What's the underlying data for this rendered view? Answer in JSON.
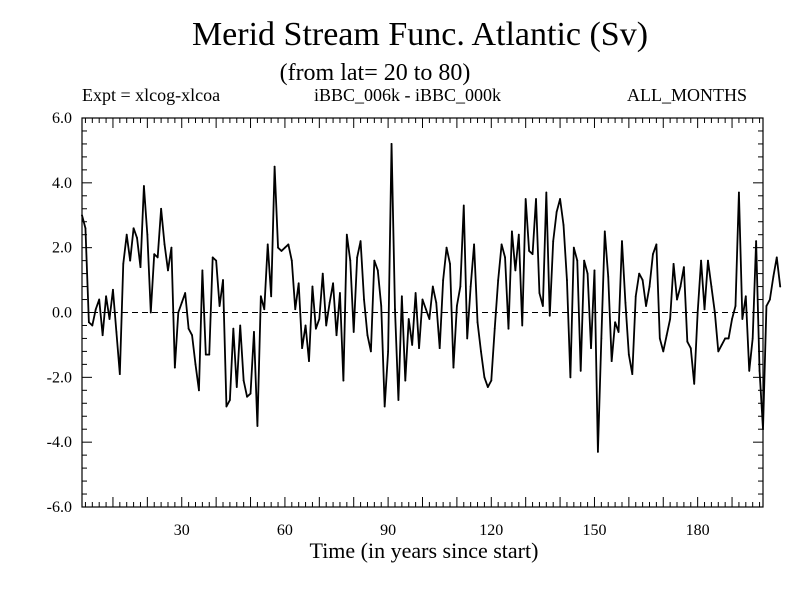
{
  "chart_data": {
    "type": "line",
    "title": "Merid Stream Func. Atlantic (Sv)",
    "subtitle": "(from lat= 20 to 80)",
    "left_label": "Expt = xlcog-xlcoa",
    "center_label": "iBBC_006k - iBBC_000k",
    "right_label": "ALL_MONTHS",
    "xlabel": "Time (in years since start)",
    "ylabel": "",
    "xlim": [
      1,
      199
    ],
    "ylim": [
      -6,
      6
    ],
    "x_ticks": [
      30,
      60,
      90,
      120,
      150,
      180
    ],
    "y_ticks": [
      -6,
      -4,
      -2,
      0,
      2,
      4,
      6
    ],
    "y_tick_labels": [
      "-6.0",
      "-4.0",
      "-2.0",
      "0.0",
      "2.0",
      "4.0",
      "6.0"
    ],
    "zero_line": "dashed",
    "series": [
      {
        "name": "iBBC_006k - iBBC_000k",
        "x_start": 1,
        "x_step": 1,
        "values": [
          3.0,
          2.6,
          -0.3,
          -0.4,
          0.1,
          0.4,
          -0.7,
          0.5,
          -0.2,
          0.7,
          -0.6,
          -1.9,
          1.5,
          2.4,
          1.6,
          2.6,
          2.3,
          1.4,
          3.9,
          2.4,
          0.0,
          1.8,
          1.7,
          3.2,
          2.1,
          1.3,
          2.0,
          -1.7,
          0.0,
          0.3,
          0.6,
          -0.5,
          -0.7,
          -1.6,
          -2.4,
          1.3,
          -1.3,
          -1.3,
          1.7,
          1.6,
          0.2,
          1.0,
          -2.9,
          -2.7,
          -0.5,
          -2.3,
          -0.4,
          -2.1,
          -2.6,
          -2.5,
          -0.6,
          -3.5,
          0.5,
          0.1,
          2.1,
          0.5,
          4.5,
          2.0,
          1.9,
          2.0,
          2.1,
          1.6,
          0.1,
          0.9,
          -1.1,
          -0.4,
          -1.5,
          0.8,
          -0.5,
          -0.2,
          1.2,
          -0.4,
          0.3,
          0.9,
          -0.7,
          0.6,
          -2.1,
          2.4,
          1.6,
          -0.6,
          1.7,
          2.2,
          0.4,
          -0.7,
          -1.2,
          1.6,
          1.3,
          0.2,
          -2.9,
          -1.2,
          5.2,
          0.1,
          -2.7,
          0.5,
          -2.1,
          -0.2,
          -1.0,
          0.6,
          -1.1,
          0.4,
          0.1,
          -0.2,
          0.8,
          0.3,
          -1.1,
          1.0,
          2.0,
          1.5,
          -1.7,
          0.2,
          0.8,
          3.3,
          -0.8,
          0.8,
          2.1,
          -0.3,
          -1.2,
          -2.0,
          -2.3,
          -2.1,
          -0.5,
          1.0,
          2.1,
          1.7,
          -0.5,
          2.5,
          1.3,
          2.4,
          -0.4,
          3.5,
          1.9,
          1.8,
          3.5,
          0.6,
          0.2,
          3.7,
          -0.1,
          2.2,
          3.1,
          3.5,
          2.7,
          1.0,
          -2.0,
          2.0,
          1.6,
          -1.8,
          1.6,
          1.2,
          -1.1,
          1.3,
          -4.3,
          -0.8,
          2.5,
          1.1,
          -1.5,
          -0.3,
          -0.6,
          2.2,
          0.3,
          -1.3,
          -1.9,
          0.5,
          1.2,
          1.0,
          0.2,
          0.8,
          1.8,
          2.1,
          -0.8,
          -1.2,
          -0.7,
          -0.2,
          1.5,
          0.4,
          0.8,
          1.4,
          -0.9,
          -1.1,
          -2.2,
          0.0,
          1.6,
          0.1,
          1.6,
          0.8,
          0.0,
          -1.2,
          -1.0,
          -0.8,
          -0.8,
          -0.2,
          0.2,
          3.7,
          -0.2,
          0.5,
          -1.8,
          -0.8,
          2.2,
          -1.8,
          -3.6,
          0.2,
          0.4,
          1.1,
          1.7,
          0.8
        ]
      }
    ]
  }
}
